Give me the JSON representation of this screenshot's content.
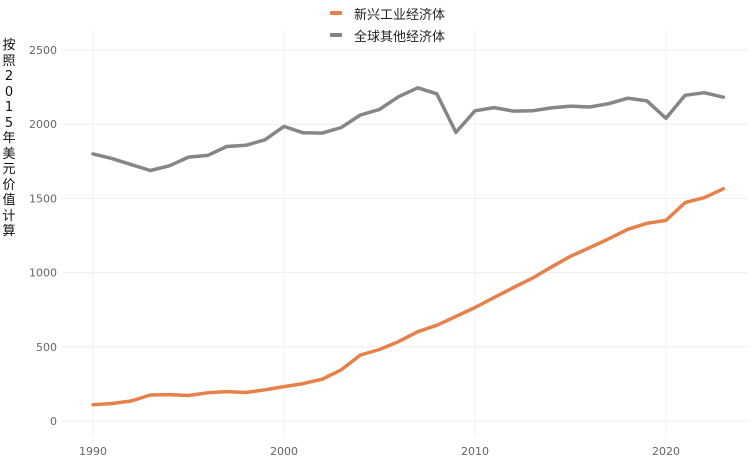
{
  "chart_data": {
    "type": "line",
    "ylabel": "按照2015年美元价值计算",
    "ylim": [
      0,
      2500
    ],
    "xlim": [
      1990,
      2023
    ],
    "yticks": [
      0,
      500,
      1000,
      1500,
      2000,
      2500
    ],
    "xticks": [
      1990,
      2000,
      2010,
      2020
    ],
    "grid": true,
    "legend_position": "top-center",
    "x": [
      1990,
      1991,
      1992,
      1993,
      1994,
      1995,
      1996,
      1997,
      1998,
      1999,
      2000,
      2001,
      2002,
      2003,
      2004,
      2005,
      2006,
      2007,
      2008,
      2009,
      2010,
      2011,
      2012,
      2013,
      2014,
      2015,
      2016,
      2017,
      2018,
      2019,
      2020,
      2021,
      2022,
      2023
    ],
    "series": [
      {
        "name": "新兴工业经济体",
        "color": "#e8804a",
        "values": [
          110,
          118,
          135,
          175,
          178,
          172,
          190,
          198,
          192,
          210,
          232,
          252,
          282,
          345,
          445,
          482,
          535,
          602,
          645,
          705,
          765,
          832,
          898,
          962,
          1038,
          1110,
          1168,
          1228,
          1292,
          1332,
          1352,
          1472,
          1505,
          1565
        ]
      },
      {
        "name": "全球其他经济体",
        "color": "#868686",
        "values": [
          1800,
          1768,
          1728,
          1688,
          1720,
          1778,
          1790,
          1850,
          1858,
          1895,
          1985,
          1942,
          1940,
          1978,
          2062,
          2100,
          2185,
          2245,
          2205,
          1945,
          2090,
          2112,
          2088,
          2090,
          2110,
          2122,
          2116,
          2138,
          2175,
          2158,
          2040,
          2195,
          2212,
          2182
        ]
      }
    ]
  }
}
